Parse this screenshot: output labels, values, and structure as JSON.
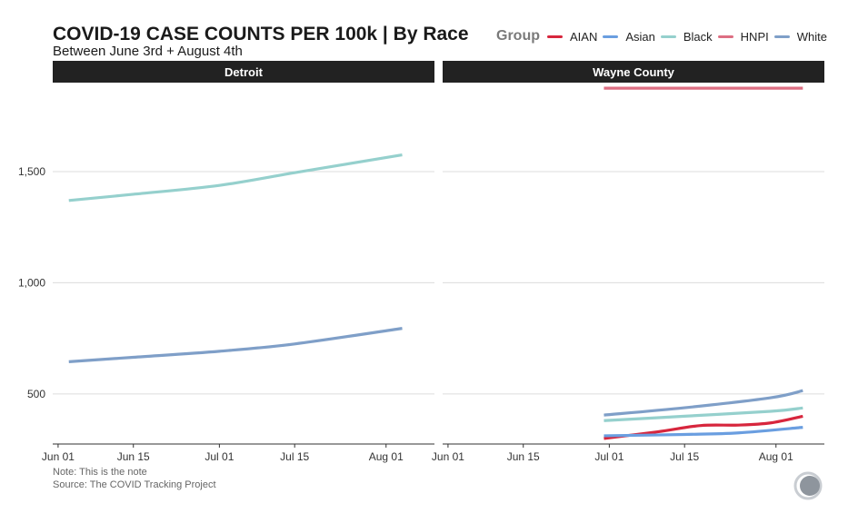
{
  "header": {
    "title": "COVID-19 CASE COUNTS PER 100k | By Race",
    "subtitle": "Between June 3rd + August 4th"
  },
  "legend": {
    "title": "Group",
    "items": [
      {
        "label": "AIAN",
        "color": "#d7263d"
      },
      {
        "label": "Asian",
        "color": "#6a9ee0"
      },
      {
        "label": "Black",
        "color": "#95d0cd"
      },
      {
        "label": "HNPI",
        "color": "#dd6e82"
      },
      {
        "label": "White",
        "color": "#7f9fc8"
      }
    ]
  },
  "footer": {
    "note": "Note: This is the note",
    "source": "Source: The COVID Tracking Project"
  },
  "logo": {
    "name": "covid-tracking-project-logo-icon"
  },
  "chart_data": {
    "type": "line",
    "facets": [
      "Detroit",
      "Wayne County"
    ],
    "x_ticks": [
      "Jun 01",
      "Jun 15",
      "Jul 01",
      "Jul 15",
      "Aug 01"
    ],
    "xlim": [
      "2020-05-31",
      "2020-08-10"
    ],
    "y_ticks": [
      "500",
      "1,000",
      "1,500"
    ],
    "ylim": [
      275,
      1900
    ],
    "grid": true,
    "legend_position": "top-right",
    "panels": [
      {
        "name": "Detroit",
        "series": [
          {
            "name": "Black",
            "color": "#95d0cd",
            "x": [
              "2020-06-03",
              "2020-06-15",
              "2020-07-01",
              "2020-07-15",
              "2020-08-04"
            ],
            "y": [
              1370,
              1398,
              1438,
              1495,
              1575
            ]
          },
          {
            "name": "White",
            "color": "#7f9fc8",
            "x": [
              "2020-06-03",
              "2020-06-15",
              "2020-07-01",
              "2020-07-15",
              "2020-08-04"
            ],
            "y": [
              645,
              665,
              692,
              725,
              795
            ]
          }
        ]
      },
      {
        "name": "Wayne County",
        "series": [
          {
            "name": "HNPI",
            "color": "#dd6e82",
            "x": [
              "2020-06-30",
              "2020-08-06"
            ],
            "y": [
              1875,
              1875
            ]
          },
          {
            "name": "White",
            "color": "#7f9fc8",
            "x": [
              "2020-06-30",
              "2020-07-15",
              "2020-07-31",
              "2020-08-06"
            ],
            "y": [
              405,
              438,
              483,
              515
            ]
          },
          {
            "name": "Black",
            "color": "#95d0cd",
            "x": [
              "2020-06-30",
              "2020-07-15",
              "2020-07-31",
              "2020-08-06"
            ],
            "y": [
              380,
              400,
              422,
              437
            ]
          },
          {
            "name": "AIAN",
            "color": "#d7263d",
            "x": [
              "2020-06-30",
              "2020-07-10",
              "2020-07-18",
              "2020-07-25",
              "2020-07-31",
              "2020-08-06"
            ],
            "y": [
              300,
              330,
              358,
              360,
              370,
              400
            ]
          },
          {
            "name": "Asian",
            "color": "#6a9ee0",
            "x": [
              "2020-06-30",
              "2020-07-15",
              "2020-07-25",
              "2020-08-06"
            ],
            "y": [
              312,
              318,
              325,
              350
            ]
          }
        ]
      }
    ]
  }
}
